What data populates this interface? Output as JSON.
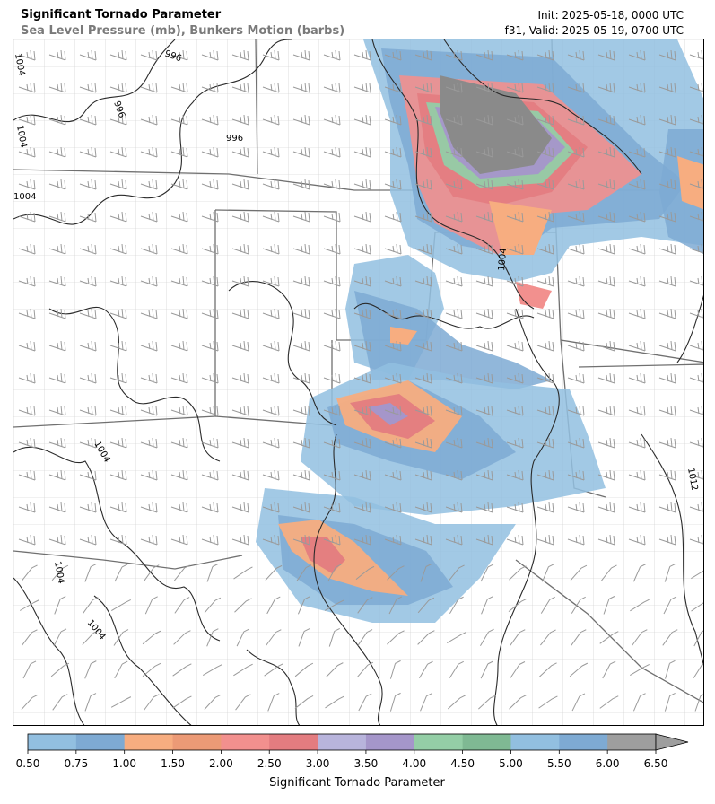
{
  "header": {
    "title": "Significant Tornado Parameter",
    "subtitle": "Sea Level Pressure (mb), Bunkers Motion (barbs)",
    "init": "Init: 2025-05-18, 0000 UTC",
    "valid": "f31, Valid: 2025-05-19, 0700 UTC"
  },
  "map": {
    "isobar_labels": [
      "996",
      "996",
      "996",
      "1004",
      "1004",
      "1004",
      "1004",
      "1004",
      "1004",
      "1012",
      "1004"
    ]
  },
  "colorbar": {
    "title": "Significant Tornado Parameter",
    "ticks": [
      "0.50",
      "0.75",
      "1.00",
      "1.50",
      "2.00",
      "2.50",
      "3.00",
      "3.50",
      "4.00",
      "4.50",
      "5.00",
      "5.50",
      "6.00",
      "6.50"
    ],
    "colors": [
      "#92bfe0",
      "#7eaad3",
      "#f7ad80",
      "#ec9a76",
      "#f2908e",
      "#e37c80",
      "#b8b4dc",
      "#a596ca",
      "#94cea6",
      "#7fb993",
      "#92bfe0",
      "#7eaad3",
      "#9e9e9e"
    ]
  },
  "colors": {
    "isobar": "#2a2a2a",
    "state_border": "#707070",
    "county_border": "#bcbcbc",
    "barb": "#9a9a9a"
  }
}
